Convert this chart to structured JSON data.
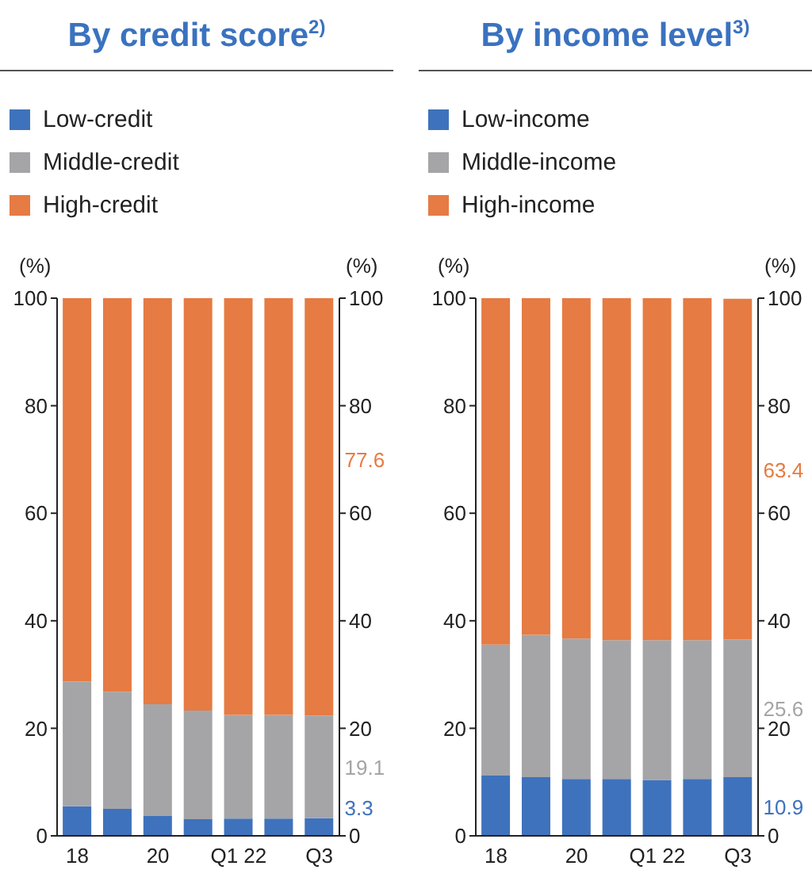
{
  "chart_data": [
    {
      "type": "bar",
      "title": "By credit score$^{2)}$",
      "ylabel": "(%)",
      "y2label": "(%)",
      "stacked": true,
      "categories": [
        "18",
        null,
        "20",
        null,
        "Q1 22",
        null,
        "Q3"
      ],
      "series": [
        {
          "name": "Low-credit",
          "color": "#3f72bc",
          "values": [
            5.5,
            5.0,
            3.7,
            3.1,
            3.2,
            3.2,
            3.3
          ]
        },
        {
          "name": "Middle-credit",
          "color": "#a5a5a8",
          "values": [
            23.2,
            21.8,
            20.8,
            20.2,
            19.3,
            19.3,
            19.1
          ]
        },
        {
          "name": "High-credit",
          "color": "#e67b43",
          "values": [
            71.3,
            73.2,
            75.5,
            76.7,
            77.5,
            77.5,
            77.6
          ]
        }
      ],
      "annotations": [
        "77.6",
        "19.1",
        "3.3"
      ],
      "ylim": [
        0,
        100
      ],
      "yticks": [
        0,
        20,
        40,
        60,
        80,
        100
      ],
      "y2lim": [
        0,
        100
      ],
      "y2ticks": [
        0,
        20,
        40,
        60,
        80,
        100
      ],
      "legend": "top left",
      "grid": false
    },
    {
      "type": "bar",
      "title": "By income level$^{3)}$",
      "ylabel": "(%)",
      "y2label": "(%)",
      "stacked": true,
      "categories": [
        "18",
        null,
        "20",
        null,
        "Q1 22",
        null,
        "Q3"
      ],
      "series": [
        {
          "name": "Low-income",
          "color": "#3f72bc",
          "values": [
            11.2,
            10.9,
            10.6,
            10.6,
            10.4,
            10.6,
            10.9
          ]
        },
        {
          "name": "Middle-income",
          "color": "#a5a5a8",
          "values": [
            24.4,
            26.5,
            26.1,
            25.8,
            26.0,
            25.8,
            25.6
          ]
        },
        {
          "name": "High-income",
          "color": "#e67b43",
          "values": [
            64.4,
            62.6,
            63.3,
            63.6,
            63.6,
            63.6,
            63.4
          ]
        }
      ],
      "annotations": [
        "63.4",
        "25.6",
        "10.9"
      ],
      "ylim": [
        0,
        100
      ],
      "yticks": [
        0,
        20,
        40,
        60,
        80,
        100
      ],
      "y2lim": [
        0,
        100
      ],
      "y2ticks": [
        0,
        20,
        40,
        60,
        80,
        100
      ],
      "legend": "top left",
      "grid": false
    }
  ]
}
